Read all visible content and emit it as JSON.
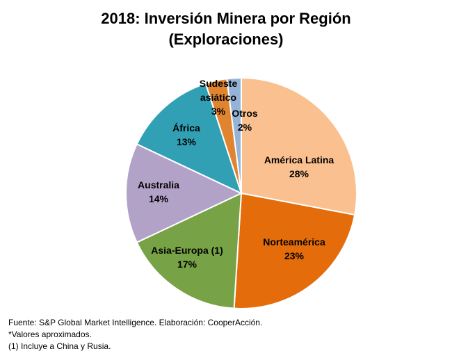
{
  "chart_data": {
    "type": "pie",
    "title_line1": "2018: Inversión Minera por Región",
    "title_line2": "(Exploraciones)",
    "slices": [
      {
        "name": "América Latina",
        "label_lines": [
          "América Latina",
          "28%"
        ],
        "value": 28,
        "color": "#FAC090"
      },
      {
        "name": "Norteamérica",
        "label_lines": [
          "Norteamérica",
          "23%"
        ],
        "value": 23,
        "color": "#E46C0A"
      },
      {
        "name": "Asia-Europa (1)",
        "label_lines": [
          "Asia-Europa (1)",
          "17%"
        ],
        "value": 17,
        "color": "#77A245"
      },
      {
        "name": "Australia",
        "label_lines": [
          "Australia",
          "14%"
        ],
        "value": 14,
        "color": "#B3A2C7"
      },
      {
        "name": "África",
        "label_lines": [
          "África",
          "13%"
        ],
        "value": 13,
        "color": "#31A0B5"
      },
      {
        "name": "Sudeste asiático",
        "label_lines": [
          "Sudeste",
          "asiático",
          "3%"
        ],
        "value": 3,
        "color": "#E0842F"
      },
      {
        "name": "Otros",
        "label_lines": [
          "Otros",
          "2%"
        ],
        "value": 2,
        "color": "#95B3D7"
      }
    ],
    "start_angle_deg": 0,
    "direction": "clockwise",
    "legend": "none"
  },
  "notes": {
    "source": "Fuente: S&P Global Market Intelligence. Elaboración: CooperAcción.",
    "approx": "*Valores aproximados.",
    "footnote": "(1) Incluye a China y Rusia."
  }
}
